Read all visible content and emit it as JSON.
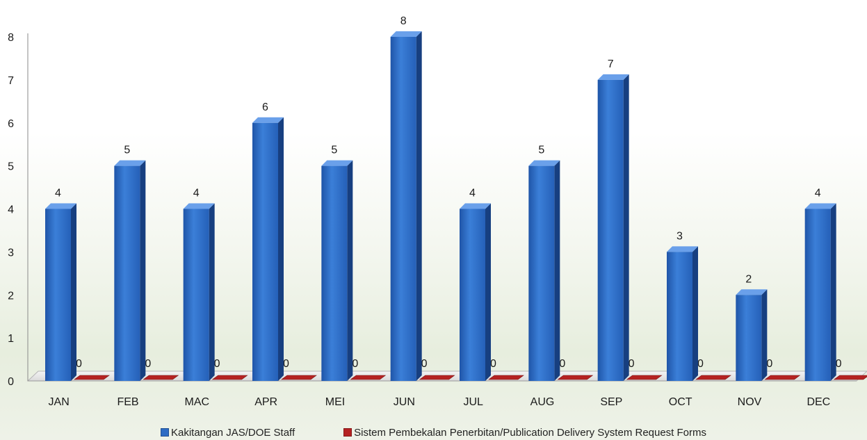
{
  "chart_data": {
    "type": "bar",
    "categories": [
      "JAN",
      "FEB",
      "MAC",
      "APR",
      "MEI",
      "JUN",
      "JUL",
      "AUG",
      "SEP",
      "OCT",
      "NOV",
      "DEC"
    ],
    "series": [
      {
        "name": "Kakitangan JAS/DOE Staff",
        "values": [
          4,
          5,
          4,
          6,
          5,
          8,
          4,
          5,
          7,
          3,
          2,
          4
        ],
        "color": "#2e6cc4"
      },
      {
        "name": "Sistem Pembekalan Penerbitan/Publication Delivery System Request Forms",
        "values": [
          0,
          0,
          0,
          0,
          0,
          0,
          0,
          0,
          0,
          0,
          0,
          0
        ],
        "color": "#b52222"
      }
    ],
    "y_ticks": [
      "0",
      "1",
      "2",
      "3",
      "4",
      "5",
      "6",
      "7",
      "8"
    ],
    "ylim": [
      0,
      8
    ],
    "title": "",
    "xlabel": "",
    "ylabel": "",
    "legend_position": "bottom",
    "style": "3d-columns",
    "grid": false
  }
}
